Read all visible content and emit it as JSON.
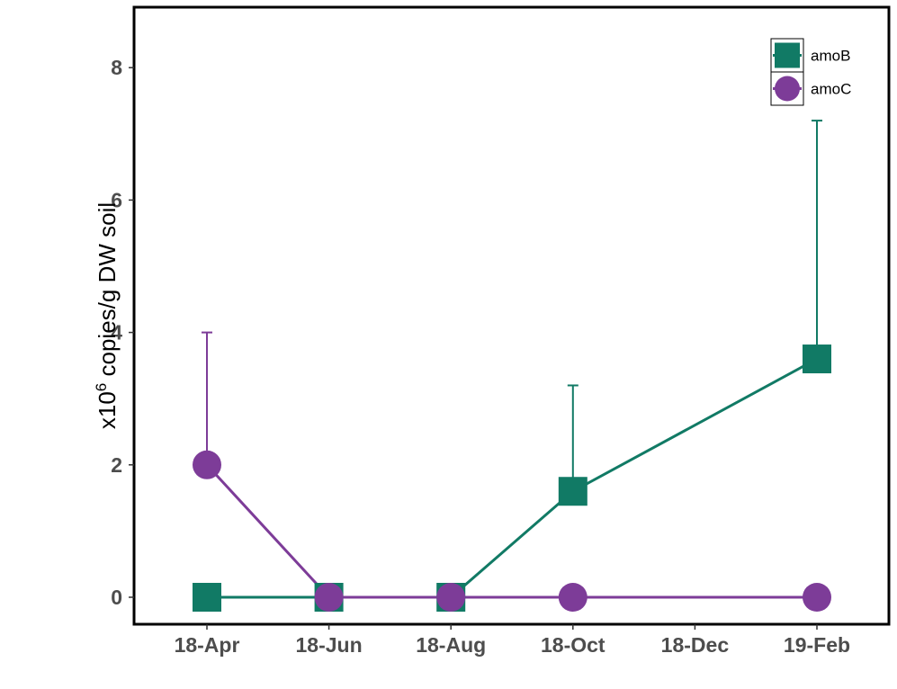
{
  "chart_data": {
    "type": "line",
    "title": "",
    "xlabel": "",
    "ylabel_prefix": "x10",
    "ylabel_sup": "6",
    "ylabel_suffix": " copies/g DW soil",
    "x_ticks": [
      "18-Apr",
      "18-Jun",
      "18-Aug",
      "18-Oct",
      "18-Dec",
      "19-Feb"
    ],
    "y_ticks": [
      0,
      2,
      4,
      6,
      8
    ],
    "ylim": [
      -0.4,
      8.9
    ],
    "grid": false,
    "legend_position": "top-right",
    "series": [
      {
        "name": "amoB",
        "marker": "square",
        "color": "#117a65",
        "x": [
          "18-Apr",
          "18-Jun",
          "18-Aug",
          "18-Oct",
          "19-Feb"
        ],
        "y": [
          0,
          0,
          0,
          1.6,
          3.6
        ],
        "error_upper": [
          0,
          0,
          0,
          3.2,
          7.2
        ]
      },
      {
        "name": "amoC",
        "marker": "circle",
        "color": "#7d3c98",
        "x": [
          "18-Apr",
          "18-Jun",
          "18-Aug",
          "18-Oct",
          "19-Feb"
        ],
        "y": [
          2.0,
          0,
          0,
          0,
          0
        ],
        "error_upper": [
          4.0,
          0,
          0,
          0,
          0
        ]
      }
    ]
  }
}
